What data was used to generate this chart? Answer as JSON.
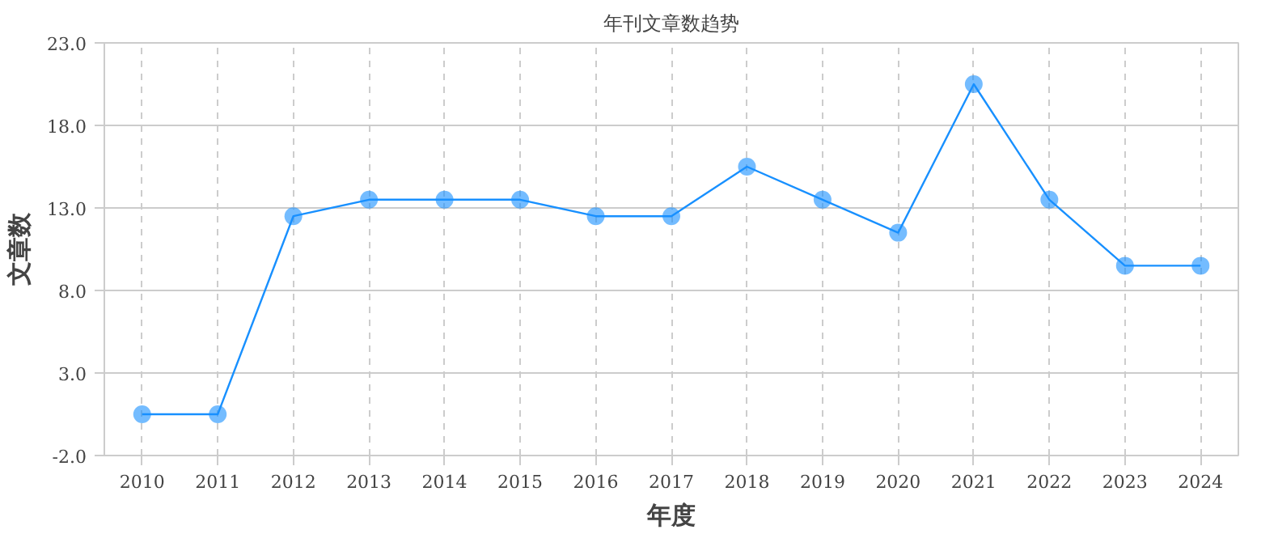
{
  "chart_data": {
    "type": "line",
    "title": "年刊文章数趋势",
    "xlabel": "年度",
    "ylabel": "文章数",
    "categories": [
      "2010",
      "2011",
      "2012",
      "2013",
      "2014",
      "2015",
      "2016",
      "2017",
      "2018",
      "2019",
      "2020",
      "2021",
      "2022",
      "2023",
      "2024"
    ],
    "series": [
      {
        "color": "#1890ff",
        "values": [
          0.5,
          0.5,
          12.5,
          13.5,
          13.5,
          13.5,
          12.5,
          12.5,
          15.5,
          13.5,
          11.5,
          20.5,
          13.5,
          9.5,
          9.5
        ]
      }
    ],
    "ylim": [
      -2,
      23
    ],
    "yticks": [
      {
        "value": -2,
        "label": "-2.0"
      },
      {
        "value": 3,
        "label": "3.0"
      },
      {
        "value": 8,
        "label": "8.0"
      },
      {
        "value": 13,
        "label": "13.0"
      },
      {
        "value": 18,
        "label": "18.0"
      },
      {
        "value": 23,
        "label": "23.0"
      }
    ],
    "grid": true,
    "marker": "circle",
    "line_style": "solid"
  }
}
